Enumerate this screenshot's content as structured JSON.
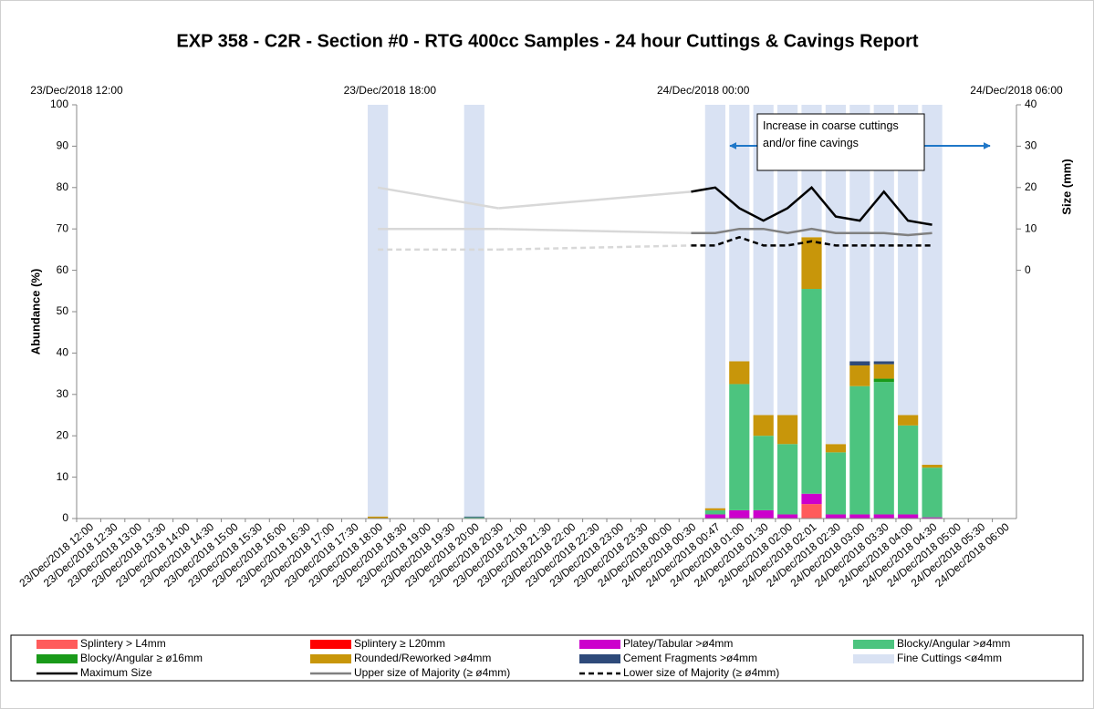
{
  "chart_data": {
    "type": "bar",
    "title": "EXP 358 - C2R - Section #0 - RTG 400cc Samples - 24 hour Cuttings & Cavings Report",
    "ylabel": "Abundance (%)",
    "y2label": "Size (mm)",
    "x2ticks": [
      "23/Dec/2018 12:00",
      "23/Dec/2018 18:00",
      "24/Dec/2018 00:00",
      "24/Dec/2018 06:00"
    ],
    "annotation": "Increase in coarse cuttings and/or fine cavings",
    "stacked": true,
    "categories": [
      "23/Dec/2018 12:00",
      "23/Dec/2018 12:30",
      "23/Dec/2018 13:00",
      "23/Dec/2018 13:30",
      "23/Dec/2018 14:00",
      "23/Dec/2018 14:30",
      "23/Dec/2018 15:00",
      "23/Dec/2018 15:30",
      "23/Dec/2018 16:00",
      "23/Dec/2018 16:30",
      "23/Dec/2018 17:00",
      "23/Dec/2018 17:30",
      "23/Dec/2018 18:00",
      "23/Dec/2018 18:30",
      "23/Dec/2018 19:00",
      "23/Dec/2018 19:30",
      "23/Dec/2018 20:00",
      "23/Dec/2018 20:30",
      "23/Dec/2018 21:00",
      "23/Dec/2018 21:30",
      "23/Dec/2018 22:00",
      "23/Dec/2018 22:30",
      "23/Dec/2018 23:00",
      "23/Dec/2018 23:30",
      "24/Dec/2018 00:00",
      "24/Dec/2018 00:30",
      "24/Dec/2018 00:47",
      "24/Dec/2018 01:00",
      "24/Dec/2018 01:30",
      "24/Dec/2018 02:00",
      "24/Dec/2018 02:01",
      "24/Dec/2018 02:30",
      "24/Dec/2018 03:00",
      "24/Dec/2018 03:30",
      "24/Dec/2018 04:00",
      "24/Dec/2018 04:30",
      "24/Dec/2018 05:00",
      "24/Dec/2018 05:30",
      "24/Dec/2018 06:00"
    ],
    "ylim": [
      0,
      100
    ],
    "yticks": [
      0,
      10,
      20,
      30,
      40,
      50,
      60,
      70,
      80,
      90,
      100
    ],
    "y2lim": [
      -60,
      40
    ],
    "y2ticks": [
      0,
      10,
      20,
      30,
      40
    ],
    "series": [
      {
        "name": "Splintery > L4mm",
        "color": "#ff5b5b",
        "values": [
          null,
          null,
          null,
          null,
          null,
          null,
          null,
          null,
          null,
          null,
          null,
          null,
          null,
          null,
          null,
          null,
          null,
          null,
          null,
          null,
          null,
          null,
          null,
          null,
          null,
          null,
          null,
          null,
          null,
          null,
          3.5,
          null,
          null,
          null,
          null,
          null,
          null,
          null,
          null
        ]
      },
      {
        "name": "Splintery ≥ L20mm",
        "color": "#ff0000",
        "values": [
          null,
          null,
          null,
          null,
          null,
          null,
          null,
          null,
          null,
          null,
          null,
          null,
          null,
          null,
          null,
          null,
          null,
          null,
          null,
          null,
          null,
          null,
          null,
          null,
          null,
          null,
          null,
          null,
          null,
          null,
          null,
          null,
          null,
          null,
          null,
          null,
          null,
          null,
          null
        ]
      },
      {
        "name": "Platey/Tabular >ø4mm",
        "color": "#cc00cc",
        "values": [
          null,
          null,
          null,
          null,
          null,
          null,
          null,
          null,
          null,
          null,
          null,
          null,
          null,
          null,
          null,
          null,
          null,
          null,
          null,
          null,
          null,
          null,
          null,
          null,
          null,
          null,
          1,
          2,
          2,
          1,
          2.5,
          1,
          1,
          1,
          1,
          0.3,
          null,
          null,
          null
        ]
      },
      {
        "name": "Blocky/Angular >ø4mm",
        "color": "#4cc47f",
        "values": [
          null,
          null,
          null,
          null,
          null,
          null,
          null,
          null,
          null,
          null,
          null,
          null,
          null,
          null,
          null,
          null,
          0.3,
          null,
          null,
          null,
          null,
          null,
          null,
          null,
          null,
          null,
          1,
          30.5,
          18,
          17,
          49.5,
          15,
          31,
          32,
          21.5,
          12,
          null,
          null,
          null
        ]
      },
      {
        "name": "Blocky/Angular ≥ ø16mm",
        "color": "#1a9a1a",
        "values": [
          null,
          null,
          null,
          null,
          null,
          null,
          null,
          null,
          null,
          null,
          null,
          null,
          null,
          null,
          null,
          null,
          null,
          null,
          null,
          null,
          null,
          null,
          null,
          null,
          null,
          null,
          null,
          null,
          null,
          null,
          null,
          null,
          null,
          0.8,
          null,
          null,
          null,
          null,
          null
        ]
      },
      {
        "name": "Rounded/Reworked >ø4mm",
        "color": "#c8960a",
        "values": [
          null,
          null,
          null,
          null,
          null,
          null,
          null,
          null,
          null,
          null,
          null,
          null,
          0.5,
          null,
          null,
          null,
          null,
          null,
          null,
          null,
          null,
          null,
          null,
          null,
          null,
          null,
          0.5,
          5.5,
          5,
          7,
          12.5,
          2,
          5,
          3.5,
          2.5,
          0.7,
          null,
          null,
          null
        ]
      },
      {
        "name": "Cement Fragments >ø4mm",
        "color": "#2e4a7a",
        "values": [
          null,
          null,
          null,
          null,
          null,
          null,
          null,
          null,
          null,
          null,
          null,
          null,
          null,
          null,
          null,
          null,
          0.2,
          null,
          null,
          null,
          null,
          null,
          null,
          null,
          null,
          null,
          null,
          null,
          null,
          null,
          null,
          null,
          1,
          0.7,
          null,
          null,
          null,
          null,
          null
        ]
      },
      {
        "name": "Fine Cuttings <ø4mm",
        "color": "#d9e2f3",
        "values": [
          null,
          null,
          null,
          null,
          null,
          null,
          null,
          null,
          null,
          null,
          null,
          null,
          99.5,
          null,
          null,
          null,
          99.5,
          null,
          null,
          null,
          null,
          null,
          null,
          null,
          null,
          null,
          97.5,
          62,
          75,
          75,
          32,
          82,
          62,
          62,
          75,
          87,
          null,
          null,
          null
        ]
      },
      {
        "name": "Maximum Size",
        "type": "line",
        "axis": "y2",
        "color": "#000000",
        "dash": false,
        "values": [
          null,
          null,
          null,
          null,
          null,
          null,
          null,
          null,
          null,
          null,
          null,
          null,
          20,
          null,
          null,
          null,
          null,
          15,
          null,
          null,
          null,
          null,
          null,
          null,
          null,
          19,
          20,
          15,
          12,
          15,
          20,
          13,
          12,
          19,
          12,
          11,
          null,
          null,
          null
        ]
      },
      {
        "name": "Upper size of Majority (≥ ø4mm)",
        "type": "line",
        "axis": "y2",
        "color": "#808080",
        "dash": false,
        "values": [
          null,
          null,
          null,
          null,
          null,
          null,
          null,
          null,
          null,
          null,
          null,
          null,
          10,
          null,
          null,
          null,
          null,
          10,
          null,
          null,
          null,
          null,
          null,
          null,
          null,
          9,
          9,
          10,
          10,
          9,
          10,
          9,
          9,
          9,
          8.5,
          9,
          null,
          null,
          null
        ]
      },
      {
        "name": "Lower size of Majority (≥ ø4mm)",
        "type": "line",
        "axis": "y2",
        "color": "#000000",
        "dash": true,
        "values": [
          null,
          null,
          null,
          null,
          null,
          null,
          null,
          null,
          null,
          null,
          null,
          null,
          5,
          null,
          null,
          null,
          null,
          5,
          null,
          null,
          null,
          null,
          null,
          null,
          null,
          6,
          6,
          8,
          6,
          6,
          7,
          6,
          6,
          6,
          6,
          6,
          null,
          null,
          null
        ]
      }
    ]
  }
}
